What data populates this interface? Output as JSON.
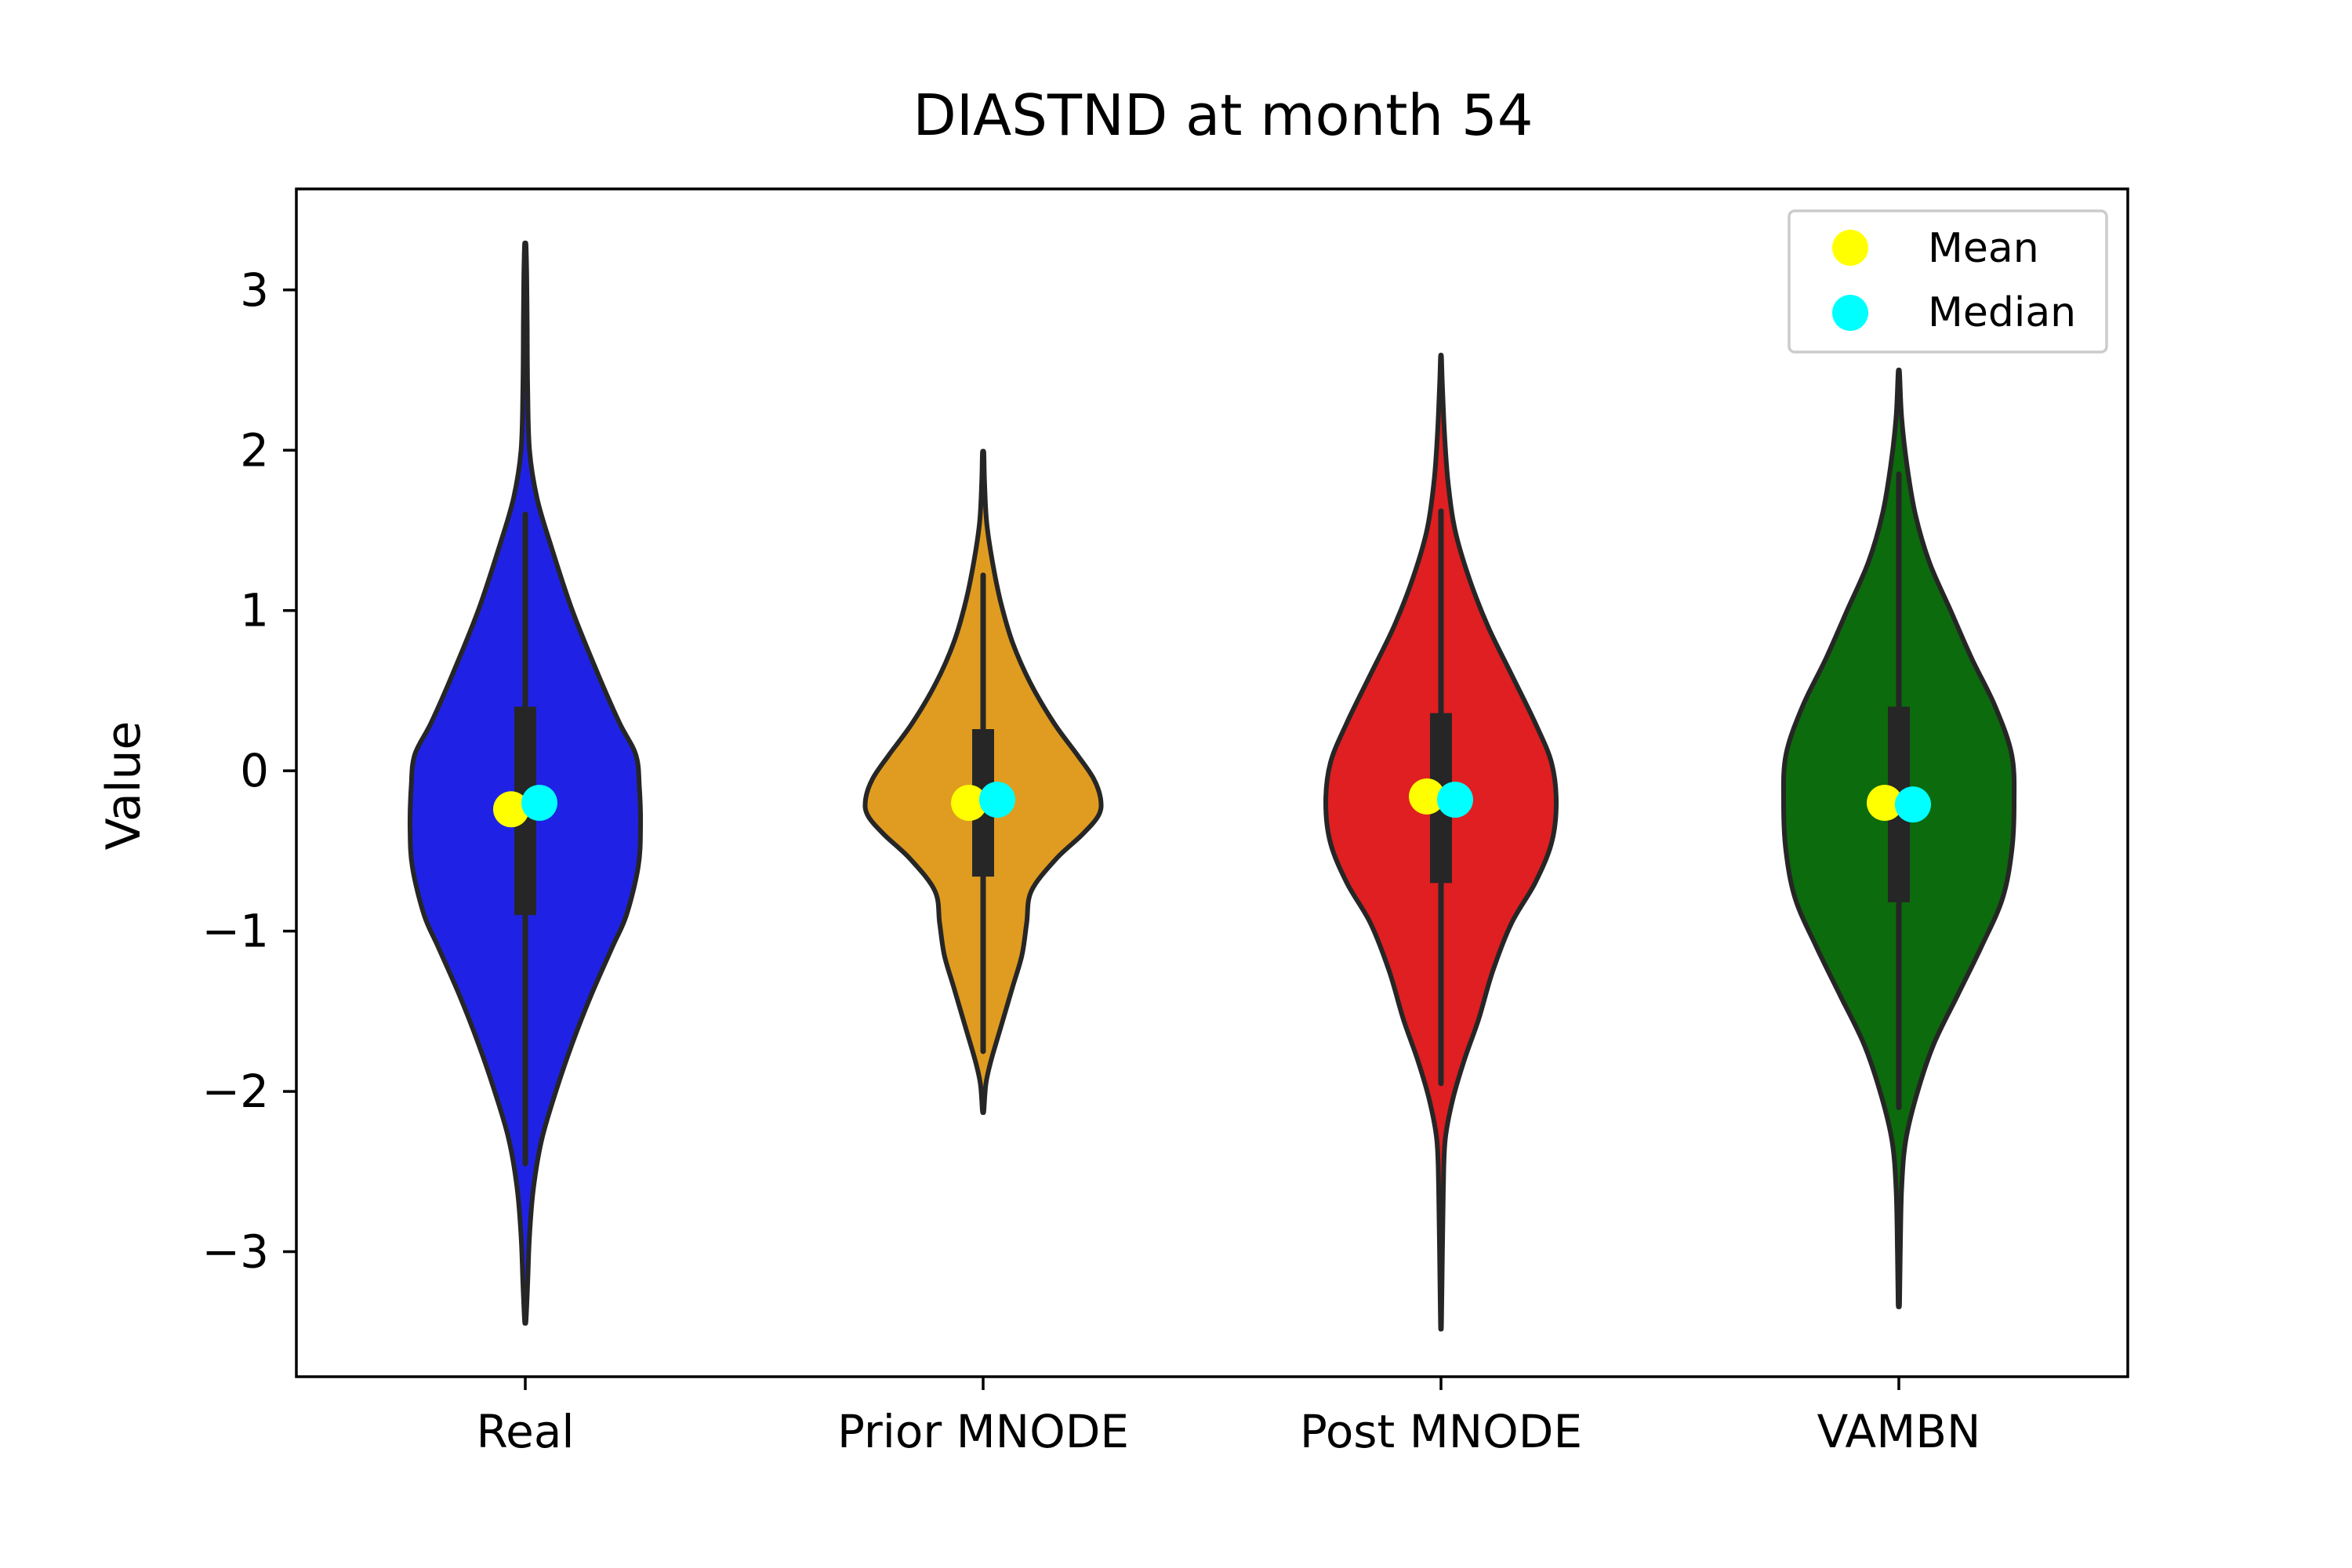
{
  "chart_data": {
    "type": "violin",
    "title": "DIASTND at month 54",
    "xlabel": "",
    "ylabel": "Value",
    "categories": [
      "Real",
      "Prior MNODE",
      "Post MNODE",
      "VAMBN"
    ],
    "ylim": [
      -3.78,
      3.63
    ],
    "yticks": [
      3,
      2,
      1,
      0,
      -1,
      -2,
      -3
    ],
    "ytick_labels": [
      "3",
      "2",
      "1",
      "0",
      "−1",
      "−2",
      "−3"
    ],
    "grid": false,
    "legend": {
      "position": "top-right",
      "entries": [
        {
          "label": "Mean",
          "color": "#ffff00"
        },
        {
          "label": "Median",
          "color": "#00ffff"
        }
      ]
    },
    "series": [
      {
        "category": "Real",
        "color": "#1f22e4",
        "min": -3.43,
        "max": 3.28,
        "q1": -0.9,
        "q3": 0.4,
        "whisker_low": -2.45,
        "whisker_high": 1.6,
        "mean": -0.24,
        "median": -0.2,
        "density": [
          [
            -3.43,
            0.003
          ],
          [
            -3.2,
            0.01
          ],
          [
            -2.9,
            0.018
          ],
          [
            -2.6,
            0.035
          ],
          [
            -2.3,
            0.07
          ],
          [
            -2.0,
            0.13
          ],
          [
            -1.7,
            0.2
          ],
          [
            -1.4,
            0.28
          ],
          [
            -1.1,
            0.37
          ],
          [
            -0.9,
            0.43
          ],
          [
            -0.6,
            0.48
          ],
          [
            -0.35,
            0.49
          ],
          [
            -0.1,
            0.485
          ],
          [
            0.1,
            0.47
          ],
          [
            0.3,
            0.4
          ],
          [
            0.6,
            0.31
          ],
          [
            1.0,
            0.2
          ],
          [
            1.4,
            0.11
          ],
          [
            1.7,
            0.05
          ],
          [
            2.0,
            0.018
          ],
          [
            2.4,
            0.01
          ],
          [
            2.8,
            0.008
          ],
          [
            3.1,
            0.006
          ],
          [
            3.28,
            0.003
          ]
        ]
      },
      {
        "category": "Prior MNODE",
        "color": "#e09c21",
        "min": -2.12,
        "max": 1.98,
        "q1": -0.66,
        "q3": 0.26,
        "whisker_low": -1.75,
        "whisker_high": 1.22,
        "mean": -0.2,
        "median": -0.18,
        "density": [
          [
            -2.12,
            0.003
          ],
          [
            -1.95,
            0.012
          ],
          [
            -1.8,
            0.035
          ],
          [
            -1.6,
            0.075
          ],
          [
            -1.35,
            0.125
          ],
          [
            -1.15,
            0.165
          ],
          [
            -0.95,
            0.185
          ],
          [
            -0.75,
            0.205
          ],
          [
            -0.55,
            0.31
          ],
          [
            -0.4,
            0.42
          ],
          [
            -0.28,
            0.49
          ],
          [
            -0.18,
            0.5
          ],
          [
            -0.05,
            0.47
          ],
          [
            0.1,
            0.4
          ],
          [
            0.3,
            0.3
          ],
          [
            0.55,
            0.2
          ],
          [
            0.8,
            0.125
          ],
          [
            1.05,
            0.075
          ],
          [
            1.3,
            0.04
          ],
          [
            1.55,
            0.015
          ],
          [
            1.8,
            0.006
          ],
          [
            1.98,
            0.003
          ]
        ]
      },
      {
        "category": "Post MNODE",
        "color": "#df1f21",
        "min": -3.45,
        "max": 2.58,
        "q1": -0.7,
        "q3": 0.36,
        "whisker_low": -1.95,
        "whisker_high": 1.62,
        "mean": -0.16,
        "median": -0.18,
        "density": [
          [
            -3.45,
            0.002
          ],
          [
            -3.0,
            0.006
          ],
          [
            -2.6,
            0.01
          ],
          [
            -2.3,
            0.018
          ],
          [
            -2.05,
            0.05
          ],
          [
            -1.8,
            0.1
          ],
          [
            -1.55,
            0.16
          ],
          [
            -1.25,
            0.22
          ],
          [
            -0.95,
            0.3
          ],
          [
            -0.7,
            0.4
          ],
          [
            -0.45,
            0.47
          ],
          [
            -0.2,
            0.49
          ],
          [
            0.05,
            0.47
          ],
          [
            0.3,
            0.4
          ],
          [
            0.6,
            0.3
          ],
          [
            0.9,
            0.2
          ],
          [
            1.2,
            0.12
          ],
          [
            1.5,
            0.06
          ],
          [
            1.8,
            0.03
          ],
          [
            2.1,
            0.015
          ],
          [
            2.4,
            0.006
          ],
          [
            2.58,
            0.002
          ]
        ]
      },
      {
        "category": "VAMBN",
        "color": "#0c6b0c",
        "min": -3.32,
        "max": 2.48,
        "q1": -0.82,
        "q3": 0.4,
        "whisker_low": -2.1,
        "whisker_high": 1.85,
        "mean": -0.2,
        "median": -0.21,
        "density": [
          [
            -3.32,
            0.003
          ],
          [
            -3.0,
            0.006
          ],
          [
            -2.6,
            0.012
          ],
          [
            -2.3,
            0.03
          ],
          [
            -2.0,
            0.08
          ],
          [
            -1.7,
            0.15
          ],
          [
            -1.4,
            0.25
          ],
          [
            -1.1,
            0.35
          ],
          [
            -0.8,
            0.44
          ],
          [
            -0.5,
            0.48
          ],
          [
            -0.2,
            0.49
          ],
          [
            0.1,
            0.48
          ],
          [
            0.4,
            0.41
          ],
          [
            0.7,
            0.31
          ],
          [
            1.0,
            0.22
          ],
          [
            1.3,
            0.13
          ],
          [
            1.6,
            0.07
          ],
          [
            1.9,
            0.035
          ],
          [
            2.2,
            0.012
          ],
          [
            2.48,
            0.003
          ]
        ]
      }
    ]
  }
}
